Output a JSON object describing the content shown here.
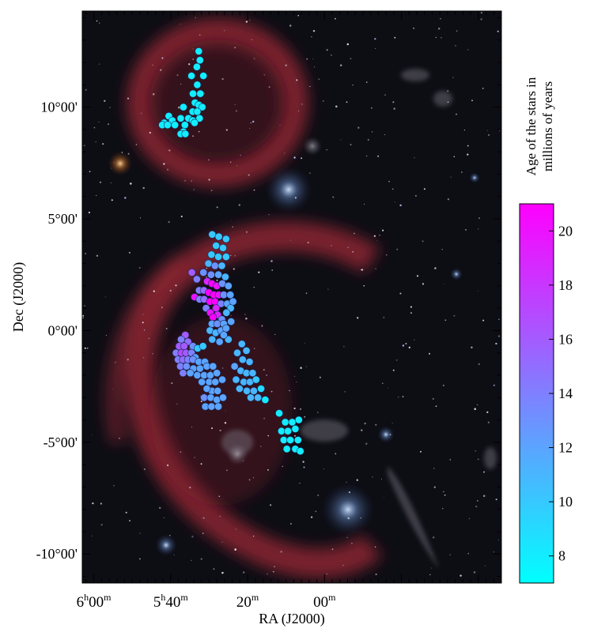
{
  "chart_data": {
    "type": "scatter",
    "xlabel": "RA (J2000)",
    "ylabel": "Dec (J2000)",
    "xlim_min_of_RA": [
      363,
      254
    ],
    "ylim_deg": [
      -11.3,
      14.3
    ],
    "x_ticks": [
      {
        "value": 360,
        "h": "6",
        "hsup": "h",
        "m": "00",
        "msup": "m"
      },
      {
        "value": 340,
        "h": "5",
        "hsup": "h",
        "m": "40",
        "msup": "m"
      },
      {
        "value": 320,
        "h": "",
        "hsup": "",
        "m": "20",
        "msup": "m"
      },
      {
        "value": 300,
        "h": "",
        "hsup": "",
        "m": "00",
        "msup": "m"
      }
    ],
    "y_ticks": [
      {
        "value": 10,
        "text": "10°00'"
      },
      {
        "value": 5,
        "text": "5°00'"
      },
      {
        "value": 0,
        "text": "0°00'"
      },
      {
        "value": -5,
        "text": "-5°00'"
      },
      {
        "value": -10,
        "text": "-10°00'"
      }
    ],
    "colorbar": {
      "label_line1": "Age of the stars in",
      "label_line2": "millions of years",
      "range": [
        7,
        21
      ],
      "ticks": [
        "8",
        "10",
        "12",
        "14",
        "16",
        "18",
        "20"
      ],
      "colors": [
        "#00ffff",
        "#ff00ff"
      ]
    },
    "background": "dark starfield with red nebulae",
    "points": [
      {
        "ra": 332.7,
        "dec": 12.5,
        "age": 8
      },
      {
        "ra": 332.4,
        "dec": 12.1,
        "age": 8
      },
      {
        "ra": 333.2,
        "dec": 11.8,
        "age": 8
      },
      {
        "ra": 334.6,
        "dec": 11.4,
        "age": 8
      },
      {
        "ra": 331.5,
        "dec": 11.4,
        "age": 8
      },
      {
        "ra": 333.1,
        "dec": 11.0,
        "age": 8
      },
      {
        "ra": 334.2,
        "dec": 10.6,
        "age": 8
      },
      {
        "ra": 332.3,
        "dec": 10.6,
        "age": 8
      },
      {
        "ra": 333.7,
        "dec": 10.2,
        "age": 8
      },
      {
        "ra": 332.7,
        "dec": 10.1,
        "age": 8
      },
      {
        "ra": 336.7,
        "dec": 10.0,
        "age": 8
      },
      {
        "ra": 331.8,
        "dec": 10.0,
        "age": 8
      },
      {
        "ra": 334.3,
        "dec": 9.8,
        "age": 8
      },
      {
        "ra": 333.1,
        "dec": 9.8,
        "age": 8
      },
      {
        "ra": 340.5,
        "dec": 9.6,
        "age": 8
      },
      {
        "ra": 337.4,
        "dec": 9.5,
        "age": 8
      },
      {
        "ra": 335.4,
        "dec": 9.5,
        "age": 8
      },
      {
        "ra": 332.5,
        "dec": 9.5,
        "age": 8
      },
      {
        "ra": 339.6,
        "dec": 9.4,
        "age": 8
      },
      {
        "ra": 334.3,
        "dec": 9.4,
        "age": 8
      },
      {
        "ra": 341.7,
        "dec": 9.3,
        "age": 8
      },
      {
        "ra": 338.9,
        "dec": 9.2,
        "age": 8
      },
      {
        "ra": 336.3,
        "dec": 9.2,
        "age": 8
      },
      {
        "ra": 333.8,
        "dec": 9.3,
        "age": 8
      },
      {
        "ra": 342.2,
        "dec": 9.2,
        "age": 8
      },
      {
        "ra": 340.8,
        "dec": 9.2,
        "age": 8
      },
      {
        "ra": 336.7,
        "dec": 8.9,
        "age": 8
      },
      {
        "ra": 337.4,
        "dec": 8.8,
        "age": 8
      },
      {
        "ra": 336.2,
        "dec": 8.8,
        "age": 8
      },
      {
        "ra": 329.2,
        "dec": 4.3,
        "age": 10
      },
      {
        "ra": 327.5,
        "dec": 4.2,
        "age": 10
      },
      {
        "ra": 325.6,
        "dec": 4.1,
        "age": 10
      },
      {
        "ra": 328.2,
        "dec": 3.8,
        "age": 10
      },
      {
        "ra": 326.4,
        "dec": 3.7,
        "age": 10
      },
      {
        "ra": 329.4,
        "dec": 3.4,
        "age": 10
      },
      {
        "ra": 327.6,
        "dec": 3.3,
        "age": 10
      },
      {
        "ra": 325.6,
        "dec": 3.3,
        "age": 10
      },
      {
        "ra": 330.2,
        "dec": 3.0,
        "age": 11
      },
      {
        "ra": 328.5,
        "dec": 2.9,
        "age": 13
      },
      {
        "ra": 326.7,
        "dec": 2.9,
        "age": 11
      },
      {
        "ra": 331.5,
        "dec": 2.6,
        "age": 13
      },
      {
        "ra": 329.5,
        "dec": 2.5,
        "age": 13
      },
      {
        "ra": 327.6,
        "dec": 2.5,
        "age": 12
      },
      {
        "ra": 325.8,
        "dec": 2.4,
        "age": 11
      },
      {
        "ra": 334.5,
        "dec": 2.6,
        "age": 16
      },
      {
        "ra": 333.2,
        "dec": 2.3,
        "age": 14
      },
      {
        "ra": 330.5,
        "dec": 2.2,
        "age": 19
      },
      {
        "ra": 329.3,
        "dec": 2.1,
        "age": 21
      },
      {
        "ra": 328.0,
        "dec": 2.0,
        "age": 20
      },
      {
        "ra": 326.6,
        "dec": 2.1,
        "age": 13
      },
      {
        "ra": 325.0,
        "dec": 2.0,
        "age": 12
      },
      {
        "ra": 332.6,
        "dec": 1.8,
        "age": 14
      },
      {
        "ra": 331.4,
        "dec": 1.8,
        "age": 15
      },
      {
        "ra": 330.1,
        "dec": 1.7,
        "age": 21
      },
      {
        "ra": 328.8,
        "dec": 1.6,
        "age": 21
      },
      {
        "ra": 327.5,
        "dec": 1.6,
        "age": 20
      },
      {
        "ra": 326.2,
        "dec": 1.6,
        "age": 13
      },
      {
        "ra": 324.5,
        "dec": 1.6,
        "age": 12
      },
      {
        "ra": 333.8,
        "dec": 1.5,
        "age": 20
      },
      {
        "ra": 332.5,
        "dec": 1.4,
        "age": 14
      },
      {
        "ra": 331.3,
        "dec": 1.4,
        "age": 15
      },
      {
        "ra": 329.8,
        "dec": 1.3,
        "age": 21
      },
      {
        "ra": 328.5,
        "dec": 1.3,
        "age": 21
      },
      {
        "ra": 326.9,
        "dec": 1.2,
        "age": 14
      },
      {
        "ra": 325.3,
        "dec": 1.2,
        "age": 12
      },
      {
        "ra": 323.8,
        "dec": 1.3,
        "age": 12
      },
      {
        "ra": 330.8,
        "dec": 1.0,
        "age": 14
      },
      {
        "ra": 328.2,
        "dec": 1.0,
        "age": 19
      },
      {
        "ra": 324.4,
        "dec": 1.0,
        "age": 11
      },
      {
        "ra": 329.7,
        "dec": 0.8,
        "age": 20
      },
      {
        "ra": 327.8,
        "dec": 0.7,
        "age": 19
      },
      {
        "ra": 325.5,
        "dec": 0.8,
        "age": 11
      },
      {
        "ra": 329.0,
        "dec": 0.6,
        "age": 21
      },
      {
        "ra": 326.7,
        "dec": 0.5,
        "age": 13
      },
      {
        "ra": 329.3,
        "dec": 0.3,
        "age": 12
      },
      {
        "ra": 327.9,
        "dec": 0.3,
        "age": 13
      },
      {
        "ra": 326.2,
        "dec": 0.3,
        "age": 12
      },
      {
        "ra": 324.3,
        "dec": 0.4,
        "age": 12
      },
      {
        "ra": 329.8,
        "dec": 0.0,
        "age": 11
      },
      {
        "ra": 328.3,
        "dec": -0.1,
        "age": 11
      },
      {
        "ra": 326.9,
        "dec": 0.0,
        "age": 12
      },
      {
        "ra": 325.6,
        "dec": 0.1,
        "age": 12
      },
      {
        "ra": 329.2,
        "dec": -0.4,
        "age": 11
      },
      {
        "ra": 327.3,
        "dec": -0.5,
        "age": 12
      },
      {
        "ra": 325.0,
        "dec": -0.4,
        "age": 11
      },
      {
        "ra": 326.2,
        "dec": -0.2,
        "age": 12
      },
      {
        "ra": 336.2,
        "dec": -0.2,
        "age": 16
      },
      {
        "ra": 337.3,
        "dec": -0.4,
        "age": 14
      },
      {
        "ra": 335.5,
        "dec": -0.5,
        "age": 15
      },
      {
        "ra": 337.8,
        "dec": -0.7,
        "age": 16
      },
      {
        "ra": 336.5,
        "dec": -0.7,
        "age": 16
      },
      {
        "ra": 334.2,
        "dec": -0.7,
        "age": 13
      },
      {
        "ra": 333.0,
        "dec": -0.8,
        "age": 10
      },
      {
        "ra": 331.6,
        "dec": -0.7,
        "age": 10
      },
      {
        "ra": 338.6,
        "dec": -1.0,
        "age": 14
      },
      {
        "ra": 337.2,
        "dec": -1.0,
        "age": 17
      },
      {
        "ra": 336.0,
        "dec": -1.0,
        "age": 16
      },
      {
        "ra": 334.6,
        "dec": -1.0,
        "age": 14
      },
      {
        "ra": 333.6,
        "dec": -1.2,
        "age": 12
      },
      {
        "ra": 338.1,
        "dec": -1.3,
        "age": 14
      },
      {
        "ra": 336.8,
        "dec": -1.3,
        "age": 15
      },
      {
        "ra": 335.5,
        "dec": -1.3,
        "age": 14
      },
      {
        "ra": 334.2,
        "dec": -1.3,
        "age": 13
      },
      {
        "ra": 332.7,
        "dec": -1.4,
        "age": 12
      },
      {
        "ra": 331.1,
        "dec": -1.4,
        "age": 12
      },
      {
        "ra": 337.5,
        "dec": -1.6,
        "age": 14
      },
      {
        "ra": 335.9,
        "dec": -1.6,
        "age": 13
      },
      {
        "ra": 334.1,
        "dec": -1.7,
        "age": 12
      },
      {
        "ra": 332.4,
        "dec": -1.7,
        "age": 12
      },
      {
        "ra": 330.6,
        "dec": -1.6,
        "age": 12
      },
      {
        "ra": 329.0,
        "dec": -1.6,
        "age": 12
      },
      {
        "ra": 336.8,
        "dec": -1.9,
        "age": 14
      },
      {
        "ra": 334.9,
        "dec": -1.9,
        "age": 12
      },
      {
        "ra": 333.1,
        "dec": -2.0,
        "age": 12
      },
      {
        "ra": 331.3,
        "dec": -2.0,
        "age": 12
      },
      {
        "ra": 329.7,
        "dec": -2.0,
        "age": 12
      },
      {
        "ra": 328.0,
        "dec": -1.9,
        "age": 12
      },
      {
        "ra": 331.9,
        "dec": -2.3,
        "age": 12
      },
      {
        "ra": 330.0,
        "dec": -2.3,
        "age": 12
      },
      {
        "ra": 328.4,
        "dec": -2.3,
        "age": 12
      },
      {
        "ra": 326.6,
        "dec": -2.2,
        "age": 12
      },
      {
        "ra": 329.3,
        "dec": -2.7,
        "age": 12
      },
      {
        "ra": 327.8,
        "dec": -2.7,
        "age": 12
      },
      {
        "ra": 330.6,
        "dec": -2.6,
        "age": 12
      },
      {
        "ra": 331.3,
        "dec": -3.0,
        "age": 13
      },
      {
        "ra": 329.6,
        "dec": -3.0,
        "age": 12
      },
      {
        "ra": 328.0,
        "dec": -3.1,
        "age": 12
      },
      {
        "ra": 326.4,
        "dec": -3.0,
        "age": 12
      },
      {
        "ra": 331.0,
        "dec": -3.4,
        "age": 12
      },
      {
        "ra": 329.4,
        "dec": -3.4,
        "age": 12
      },
      {
        "ra": 327.6,
        "dec": -3.4,
        "age": 12
      },
      {
        "ra": 321.5,
        "dec": -0.6,
        "age": 11
      },
      {
        "ra": 320.3,
        "dec": -0.9,
        "age": 11
      },
      {
        "ra": 322.7,
        "dec": -1.0,
        "age": 11
      },
      {
        "ra": 321.3,
        "dec": -1.3,
        "age": 11
      },
      {
        "ra": 319.5,
        "dec": -1.4,
        "age": 11
      },
      {
        "ra": 323.4,
        "dec": -1.6,
        "age": 12
      },
      {
        "ra": 321.8,
        "dec": -1.8,
        "age": 11
      },
      {
        "ra": 320.3,
        "dec": -1.9,
        "age": 11
      },
      {
        "ra": 318.7,
        "dec": -1.9,
        "age": 11
      },
      {
        "ra": 323.0,
        "dec": -2.2,
        "age": 11
      },
      {
        "ra": 321.0,
        "dec": -2.3,
        "age": 11
      },
      {
        "ra": 319.4,
        "dec": -2.3,
        "age": 11
      },
      {
        "ra": 317.8,
        "dec": -2.2,
        "age": 10
      },
      {
        "ra": 322.1,
        "dec": -2.6,
        "age": 11
      },
      {
        "ra": 320.2,
        "dec": -2.7,
        "age": 11
      },
      {
        "ra": 318.4,
        "dec": -2.7,
        "age": 11
      },
      {
        "ra": 316.5,
        "dec": -2.6,
        "age": 9
      },
      {
        "ra": 319.2,
        "dec": -3.0,
        "age": 11
      },
      {
        "ra": 317.3,
        "dec": -3.0,
        "age": 11
      },
      {
        "ra": 315.4,
        "dec": -3.1,
        "age": 8
      },
      {
        "ra": 311.8,
        "dec": -3.7,
        "age": 8
      },
      {
        "ra": 310.2,
        "dec": -4.1,
        "age": 8
      },
      {
        "ra": 308.4,
        "dec": -4.1,
        "age": 8
      },
      {
        "ra": 306.7,
        "dec": -4.0,
        "age": 8
      },
      {
        "ra": 311.2,
        "dec": -4.5,
        "age": 8
      },
      {
        "ra": 309.5,
        "dec": -4.5,
        "age": 8
      },
      {
        "ra": 307.6,
        "dec": -4.4,
        "age": 8
      },
      {
        "ra": 310.6,
        "dec": -4.9,
        "age": 8
      },
      {
        "ra": 308.9,
        "dec": -4.9,
        "age": 8
      },
      {
        "ra": 306.9,
        "dec": -4.9,
        "age": 8
      },
      {
        "ra": 309.8,
        "dec": -5.3,
        "age": 8
      },
      {
        "ra": 307.6,
        "dec": -5.3,
        "age": 8
      },
      {
        "ra": 306.3,
        "dec": -5.4,
        "age": 8
      }
    ]
  }
}
